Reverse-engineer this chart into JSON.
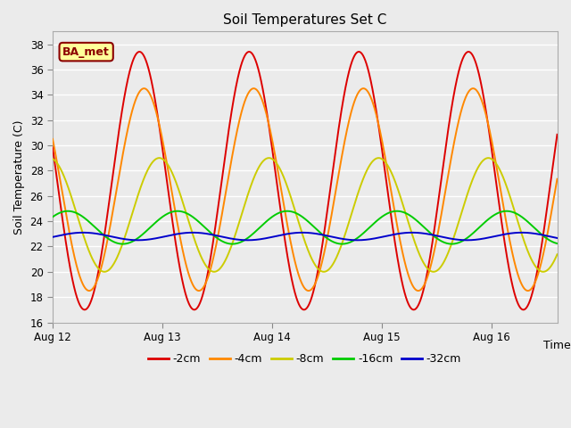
{
  "title": "Soil Temperatures Set C",
  "xlabel": "Time",
  "ylabel": "Soil Temperature (C)",
  "ylim": [
    16,
    39
  ],
  "yticks": [
    16,
    18,
    20,
    22,
    24,
    26,
    28,
    30,
    32,
    34,
    36,
    38
  ],
  "xlim": [
    0,
    4.6
  ],
  "xtick_positions": [
    0,
    1,
    2,
    3,
    4
  ],
  "xtick_labels": [
    "Aug 12",
    "Aug 13",
    "Aug 14",
    "Aug 15",
    "Aug 16"
  ],
  "background_color": "#ebebeb",
  "grid_color": "#ffffff",
  "annotation_text": "BA_met",
  "annotation_bg": "#ffff99",
  "annotation_border": "#8B0000",
  "series": [
    {
      "label": "-2cm",
      "color": "#dd0000",
      "lw": 1.4,
      "mean": 27.2,
      "amp": 10.2,
      "phase_deg": 165,
      "period": 1.0
    },
    {
      "label": "-4cm",
      "color": "#ff8800",
      "lw": 1.4,
      "mean": 26.5,
      "amp": 8.0,
      "phase_deg": 150,
      "period": 1.0
    },
    {
      "label": "-8cm",
      "color": "#cccc00",
      "lw": 1.4,
      "mean": 24.5,
      "amp": 4.5,
      "phase_deg": 100,
      "period": 1.0
    },
    {
      "label": "-16cm",
      "color": "#00cc00",
      "lw": 1.4,
      "mean": 23.5,
      "amp": 1.3,
      "phase_deg": 40,
      "period": 1.0
    },
    {
      "label": "-32cm",
      "color": "#0000cc",
      "lw": 1.4,
      "mean": 22.8,
      "amp": 0.3,
      "phase_deg": -10,
      "period": 1.0
    }
  ],
  "legend_colors": [
    "#dd0000",
    "#ff8800",
    "#cccc00",
    "#00cc00",
    "#0000cc"
  ],
  "legend_labels": [
    "-2cm",
    "-4cm",
    "-8cm",
    "-16cm",
    "-32cm"
  ],
  "figsize": [
    6.4,
    4.8
  ],
  "dpi": 100
}
